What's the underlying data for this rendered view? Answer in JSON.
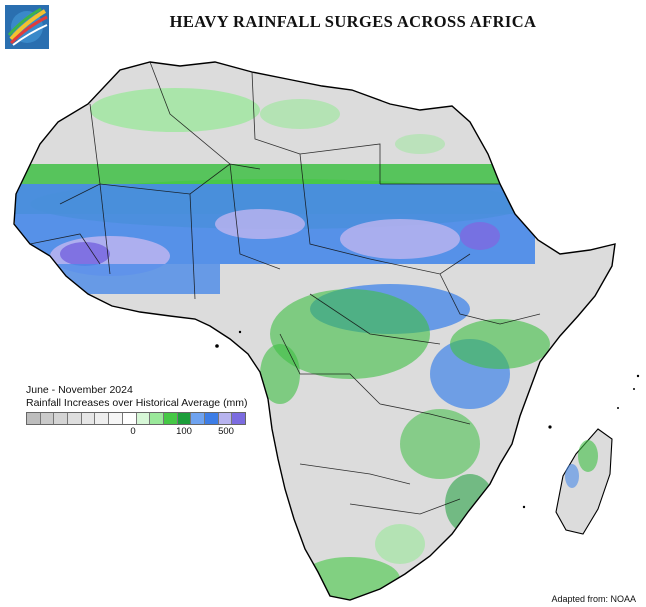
{
  "title": "HEAVY RAINFALL SURGES ACROSS AFRICA",
  "logo_icon": "globe-swoosh-logo-icon",
  "legend": {
    "line1": "June - November 2024",
    "line2": "Rainfall Increases over Historical Average (mm)",
    "swatches": [
      "#bdbdbd",
      "#cacaca",
      "#d4d4d4",
      "#dedede",
      "#e6e6e6",
      "#eeeeee",
      "#f6f6f6",
      "#ffffff",
      "#d7f7d7",
      "#9ae89a",
      "#45c845",
      "#1c9e3a",
      "#6fa3f0",
      "#3d7de6",
      "#b7b3ef",
      "#7b6be0"
    ],
    "tick_labels": [
      "0",
      "100",
      "500"
    ]
  },
  "colors": {
    "land": "#dcdcdc",
    "border": "#000000",
    "ocean": "#ffffff",
    "light_green": "#9ae89a",
    "green": "#3fbf45",
    "dark_green": "#1c9e3a",
    "blue": "#4a8ae8",
    "lavender": "#b7b3ef",
    "purple": "#7b6be0"
  },
  "credit": "Adapted from: NOAA"
}
